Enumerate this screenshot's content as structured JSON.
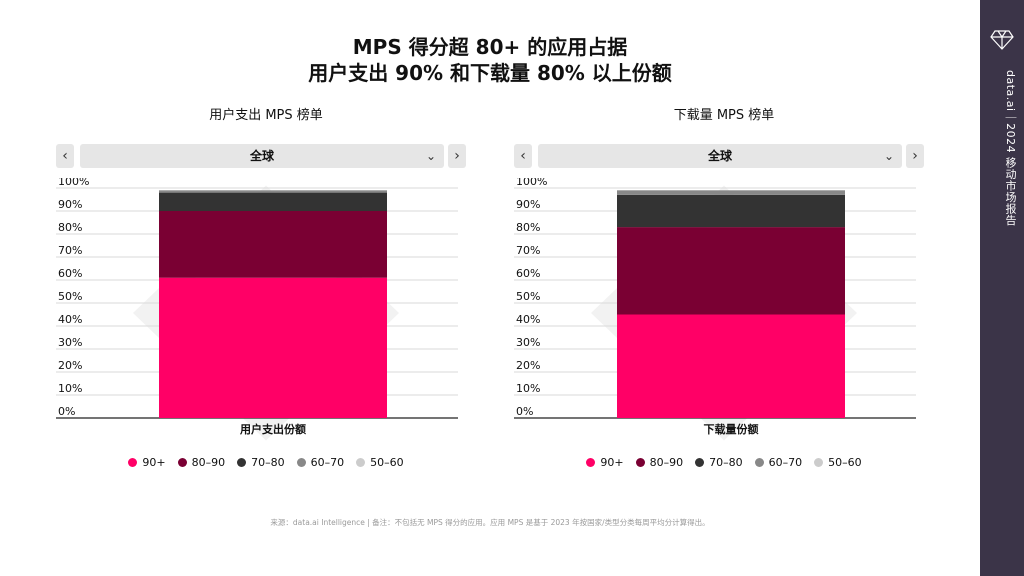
{
  "title": {
    "line1": "MPS 得分超 80+ 的应用占据",
    "line2": "用户支出 90% 和下载量 80% 以上份额"
  },
  "charts": [
    {
      "title": "用户支出 MPS 榜单",
      "region": "全球",
      "prev_icon": "chevron-left-icon",
      "next_icon": "chevron-right-icon",
      "xlabel": "用户支出份额"
    },
    {
      "title": "下载量 MPS 榜单",
      "region": "全球",
      "prev_icon": "chevron-left-icon",
      "next_icon": "chevron-right-icon",
      "xlabel": "下载量份额"
    }
  ],
  "legend": [
    {
      "label": "90+",
      "color": "#ff0066"
    },
    {
      "label": "80–90",
      "color": "#7a0033"
    },
    {
      "label": "70–80",
      "color": "#333333"
    },
    {
      "label": "60–70",
      "color": "#888888"
    },
    {
      "label": "50–60",
      "color": "#cccccc"
    }
  ],
  "chart_data": [
    {
      "type": "bar",
      "stacked": true,
      "title": "用户支出 MPS 榜单",
      "categories": [
        "用户支出份额"
      ],
      "series": [
        {
          "name": "90+",
          "values": [
            61
          ]
        },
        {
          "name": "80–90",
          "values": [
            29
          ]
        },
        {
          "name": "70–80",
          "values": [
            8
          ]
        },
        {
          "name": "60–70",
          "values": [
            1
          ]
        },
        {
          "name": "50–60",
          "values": [
            0
          ]
        }
      ],
      "ylim": [
        0,
        100
      ],
      "yticks": [
        "0%",
        "10%",
        "20%",
        "30%",
        "40%",
        "50%",
        "60%",
        "70%",
        "80%",
        "90%",
        "100%"
      ],
      "grid": true,
      "legend": "bottom"
    },
    {
      "type": "bar",
      "stacked": true,
      "title": "下载量 MPS 榜单",
      "categories": [
        "下载量份额"
      ],
      "series": [
        {
          "name": "90+",
          "values": [
            45
          ]
        },
        {
          "name": "80–90",
          "values": [
            38
          ]
        },
        {
          "name": "70–80",
          "values": [
            14
          ]
        },
        {
          "name": "60–70",
          "values": [
            2
          ]
        },
        {
          "name": "50–60",
          "values": [
            0
          ]
        }
      ],
      "ylim": [
        0,
        100
      ],
      "yticks": [
        "0%",
        "10%",
        "20%",
        "30%",
        "40%",
        "50%",
        "60%",
        "70%",
        "80%",
        "90%",
        "100%"
      ],
      "grid": true,
      "legend": "bottom"
    }
  ],
  "footnote": "来源：data.ai Intelligence | 备注：不包括无 MPS 得分的应用。应用 MPS 是基于 2023 年按国家/类型分类每周平均分计算得出。",
  "brand": {
    "text": "data.ai｜2024 移动市场报告",
    "icon": "diamond-logo-icon"
  }
}
